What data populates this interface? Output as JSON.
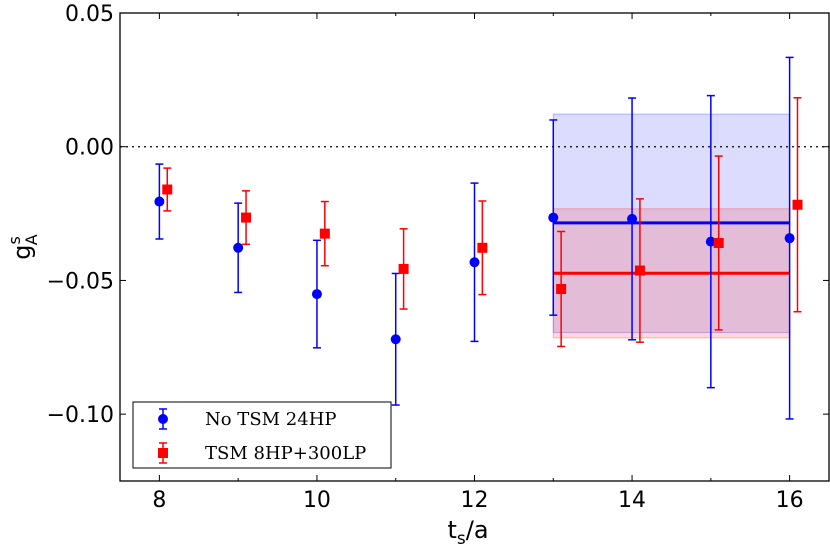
{
  "chart_data": {
    "type": "scatter",
    "xlabel": "t",
    "xlabel_sub": "s",
    "xlabel_suffix": "/a",
    "ylabel": "g",
    "ylabel_sup": "s",
    "ylabel_sub": "A",
    "xlim": [
      7.5,
      16.5
    ],
    "ylim": [
      -0.125,
      0.05
    ],
    "xticks": [
      8,
      10,
      12,
      14,
      16
    ],
    "xtick_labels": [
      "8",
      "10",
      "12",
      "14",
      "16"
    ],
    "yticks": [
      0.05,
      0.0,
      -0.05,
      -0.1
    ],
    "ytick_labels": [
      "0.05",
      "0.00",
      "−0.05",
      "−0.10"
    ],
    "reference_line": 0.0,
    "legend_position": "bottom-left",
    "series": [
      {
        "name": "No TSM 24HP",
        "marker": "circle",
        "color": "#0000ff",
        "x": [
          8,
          9,
          10,
          11,
          12,
          13,
          14,
          15,
          16
        ],
        "y": [
          -0.0205,
          -0.0378,
          -0.0551,
          -0.072,
          -0.0432,
          -0.0265,
          -0.027,
          -0.0355,
          -0.0342
        ],
        "yerr": [
          0.014,
          0.0167,
          0.0201,
          0.0246,
          0.0296,
          0.0365,
          0.0452,
          0.0546,
          0.0676
        ],
        "band": {
          "x": [
            13,
            16
          ],
          "center": -0.0285,
          "lower": -0.0695,
          "upper": 0.0122,
          "fill": "rgba(80,80,255,0.2)"
        }
      },
      {
        "name": "TSM 8HP+300LP",
        "marker": "square",
        "color": "#ff0000",
        "x": [
          8.1,
          9.1,
          10.1,
          11.1,
          12.1,
          13.1,
          14.1,
          15.1,
          16.1
        ],
        "y": [
          -0.016,
          -0.0265,
          -0.0325,
          -0.0457,
          -0.0378,
          -0.0532,
          -0.0463,
          -0.036,
          -0.0217
        ],
        "yerr": [
          0.008,
          0.01,
          0.012,
          0.015,
          0.0175,
          0.0215,
          0.0268,
          0.0325,
          0.04
        ],
        "band": {
          "x": [
            13,
            16
          ],
          "center": -0.0473,
          "lower": -0.0715,
          "upper": -0.0232,
          "fill": "rgba(255,60,60,0.2)"
        }
      }
    ]
  }
}
